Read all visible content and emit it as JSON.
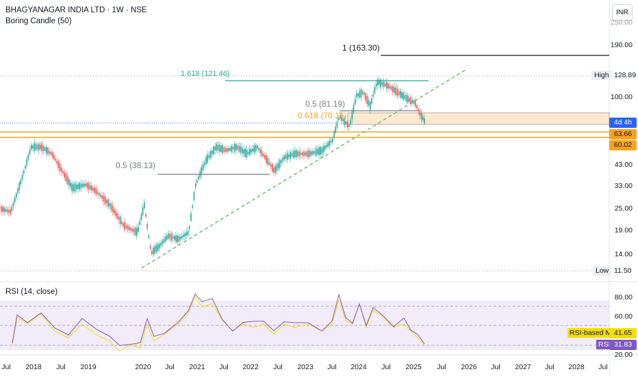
{
  "header": {
    "symbol": "BHAGYANAGAR INDIA LTD · 1W · NSE",
    "indicator": "Boring Candle (50)",
    "currency": "INR"
  },
  "price_axis": [
    "250.00",
    "190.00",
    "128.89",
    "100.00",
    "63.66",
    "60.02",
    "43.00",
    "33.00",
    "25.00",
    "19.00",
    "14.00",
    "11.50"
  ],
  "price_axis_visible": [
    "190.00",
    "100.00",
    "43.00",
    "33.00",
    "25.00",
    "19.00",
    "14.00"
  ],
  "tags": {
    "high_label": "High",
    "high_value": "128.89",
    "countdown": "4d 4h",
    "level_a": "63.66",
    "level_b": "60.02",
    "low_label": "Low",
    "low_value": "11.50"
  },
  "fib_labels": {
    "f1": "1 (163.30)",
    "f1618": "1.618 (121.46)",
    "f05_upper": "0.5 (81.19)",
    "f0618": "0.618 (70.16)",
    "f05_lower": "0.5 (38.13)"
  },
  "rsi": {
    "title": "RSI (14, close)",
    "axis": [
      "80.00",
      "60.00",
      "20.00"
    ],
    "ma_label": "RSI-based MA",
    "ma_value": "41.65",
    "rsi_label": "RSI",
    "rsi_value": "31.83"
  },
  "time_axis": [
    "Jul",
    "2018",
    "Jul",
    "2019",
    "2020",
    "Jul",
    "2021",
    "Jul",
    "2022",
    "Jul",
    "2023",
    "Jul",
    "2024",
    "Jul",
    "2025",
    "Jul",
    "2026",
    "Jul",
    "2027",
    "Jul",
    "2028",
    "Jul"
  ],
  "colors": {
    "up": "#26a69a",
    "down": "#ef5350",
    "fib_teal": "#22ab94",
    "orange": "#f7a21b",
    "blue": "#2962ff",
    "rsi_line": "#7e57c2",
    "rsi_ma": "#f5de00",
    "trend": "#4caf50"
  }
}
